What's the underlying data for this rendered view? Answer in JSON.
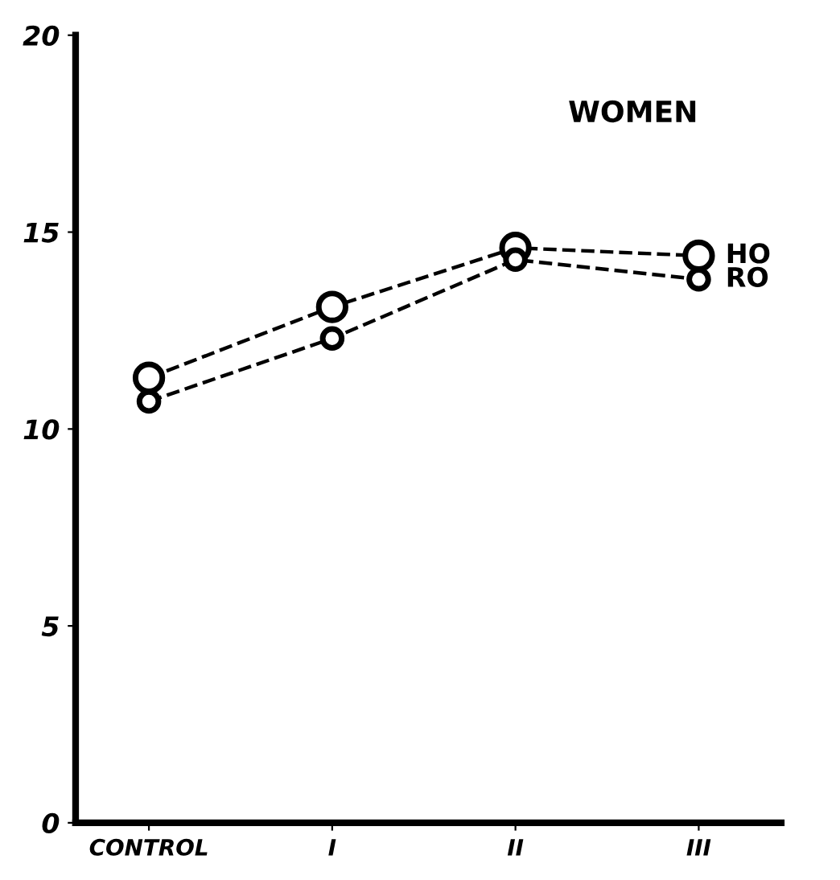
{
  "chart_data": {
    "type": "line",
    "categories": [
      "CONTROL",
      "I",
      "II",
      "III"
    ],
    "series": [
      {
        "name": "HO",
        "color": "#000000",
        "values": [
          11.3,
          13.1,
          14.6,
          14.4
        ]
      },
      {
        "name": "RO",
        "color": "#000000",
        "values": [
          10.7,
          12.3,
          14.3,
          13.8
        ]
      }
    ],
    "ylim": [
      0,
      20
    ],
    "yticks": [
      0,
      5,
      10,
      15,
      20
    ],
    "annotations": [
      "WOMEN"
    ],
    "marker": "circle",
    "line_style": "dashed",
    "grid": false,
    "legend": false
  }
}
